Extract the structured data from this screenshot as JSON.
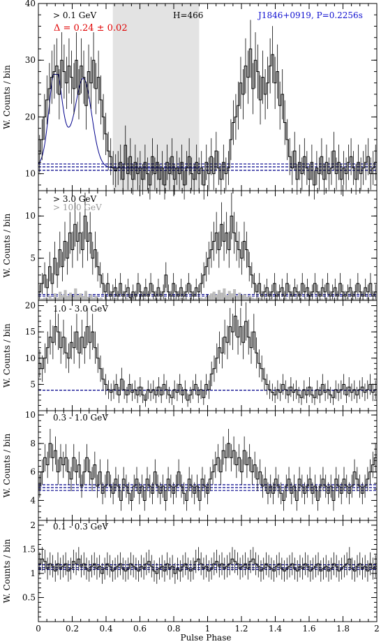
{
  "chart_data": {
    "type": "histogram",
    "xlabel": "Pulse Phase",
    "xlim": [
      0,
      2
    ],
    "x_ticks": [
      0,
      0.2,
      0.4,
      0.6,
      0.8,
      1,
      1.2,
      1.4,
      1.6,
      1.8,
      2
    ],
    "x_tick_labels": [
      "0",
      "0.2",
      "0.4",
      "0.6",
      "0.8",
      "1",
      "1.2",
      "1.4",
      "1.6",
      "1.8",
      "2"
    ],
    "panels": [
      {
        "id": "p1",
        "energy_label": "> 0.1 GeV",
        "delta_label": "Δ = 0.24 ± 0.02",
        "h_label": "H=466",
        "pulsar_label": "J1846+0919, P=0.2256s",
        "ylabel": "W. Counts / bin",
        "ylim": [
          7,
          40
        ],
        "y_ticks": [
          10,
          20,
          30,
          40
        ],
        "y_tick_labels": [
          "10",
          "20",
          "30",
          "40"
        ],
        "offpulse_region": [
          0.44,
          0.95
        ],
        "background_levels": [
          10.6,
          11.2,
          11.7
        ],
        "background_color": "#00008b",
        "model_color": "#00008b",
        "profile": [
          13.5,
          16,
          20,
          23,
          25,
          27,
          28,
          29,
          24,
          30,
          28,
          26,
          29,
          27,
          25,
          30,
          24,
          29,
          27,
          22,
          28,
          26,
          30,
          25,
          27,
          23,
          20,
          17,
          14,
          13,
          11,
          10.5,
          11,
          12,
          9,
          15,
          10,
          13,
          9,
          12,
          10,
          11,
          9,
          12,
          10,
          8,
          13,
          10,
          12,
          9,
          11,
          8,
          12,
          10,
          13,
          9,
          11,
          10,
          12,
          8,
          11,
          13,
          10,
          9,
          12,
          10,
          11,
          8,
          12,
          10,
          13,
          10,
          14,
          11,
          9,
          12,
          10,
          11,
          16,
          19,
          20,
          22,
          26,
          24,
          29,
          27,
          32,
          25,
          30,
          28,
          23,
          27,
          24,
          26,
          29,
          31,
          26,
          28,
          22,
          24,
          19,
          16,
          13,
          11,
          14,
          9,
          12,
          10,
          13,
          11,
          9,
          12,
          8,
          11,
          10,
          13,
          9,
          12,
          10,
          11,
          14,
          10,
          12,
          9,
          11,
          10,
          12,
          13,
          11,
          9,
          12,
          10,
          11,
          12,
          13,
          10,
          11,
          12
        ]
      },
      {
        "id": "p2",
        "energy_label": "> 3.0 GeV",
        "energy_label_2": "> 10.0 GeV",
        "ylabel": "W. Counts / bin",
        "ylim": [
          0,
          13
        ],
        "y_ticks": [
          5,
          10
        ],
        "y_tick_labels": [
          "5",
          "10"
        ],
        "background_levels": [
          0.5,
          0.7
        ],
        "background_color": "#00008b",
        "profile": [
          1,
          2,
          3,
          1.5,
          4,
          2,
          5,
          3,
          6,
          4,
          7,
          5,
          8,
          6,
          9,
          7,
          8,
          6,
          10,
          7,
          8,
          5,
          6,
          4,
          3,
          2,
          1,
          2,
          0.5,
          1,
          1.5,
          0.5,
          2,
          0.5,
          1,
          1.5,
          0.3,
          1,
          0.5,
          2,
          1,
          0.5,
          1.5,
          0.5,
          2,
          1,
          0.5,
          1.5,
          0.5,
          1,
          3,
          1,
          0.5,
          2,
          1,
          0.5,
          1.5,
          0.5,
          1,
          2,
          1,
          0.5,
          1.5,
          1,
          2,
          3,
          4,
          5,
          6,
          7,
          8,
          6,
          9,
          7,
          8,
          6,
          10,
          8,
          7,
          6,
          5,
          7,
          6,
          4,
          3,
          2,
          1,
          2,
          0.5,
          1,
          1.5,
          0.5,
          1,
          2,
          0.5,
          1,
          1.5,
          0.5,
          2,
          1,
          0.5,
          1.5,
          1,
          0.5,
          2,
          1,
          1.5,
          0.5,
          1,
          2,
          1,
          0.5,
          1.5,
          1,
          2,
          0.5,
          1,
          1.5,
          0.5,
          2,
          1,
          0.5,
          1,
          1.5,
          0.5,
          1,
          2,
          1,
          0.5,
          1.5,
          1,
          2,
          0.5,
          1
        ],
        "profile_2": [
          0.1,
          0.2,
          0.3,
          0.1,
          0.5,
          0.2,
          0.8,
          0.3,
          1,
          0.6,
          1.2,
          0.5,
          0.9,
          0.4,
          1.4,
          0.6,
          0.8,
          0.5,
          1.1,
          0.4,
          0.7,
          0.3,
          0.5,
          0.2,
          0.3,
          0.1,
          0.2,
          0.1,
          0.2,
          0.1,
          0.3,
          0.1,
          0.2,
          0.1,
          0.3,
          0.1,
          0.2,
          0.4,
          0.1,
          0.2,
          0.1,
          0.3,
          0.1,
          0.2,
          0.1,
          0.2,
          0.1,
          0.3,
          0.1,
          0.2,
          0.1,
          0.3,
          0.1,
          0.2,
          0.1,
          0.3,
          0.1,
          0.2,
          0.1,
          0.3,
          0.1,
          0.2,
          0.1,
          0.3,
          0.2,
          0.4,
          0.6,
          0.8,
          1,
          0.7,
          1.2,
          0.9,
          1.4,
          0.6,
          1.1,
          0.8,
          1.3,
          0.5,
          0.9,
          0.6,
          0.7,
          0.4,
          0.5,
          0.3,
          0.2,
          0.1,
          0.3,
          0.1,
          0.2,
          0.1,
          0.3,
          0.1,
          0.2,
          0.1,
          0.2,
          0.1,
          0.3,
          0.1,
          0.2,
          0.1,
          0.3,
          0.1,
          0.2,
          0.1,
          0.3,
          0.1,
          0.2,
          0.1,
          0.3,
          0.1,
          0.2,
          0.1,
          0.3,
          0.1,
          0.2,
          0.1,
          0.3,
          0.1,
          0.2,
          0.1,
          0.3,
          0.1,
          0.2,
          0.1,
          0.3,
          0.1,
          0.2,
          0.1,
          0.3,
          0.1,
          0.2,
          0.1
        ]
      },
      {
        "id": "p3",
        "energy_label": "1.0 - 3.0 GeV",
        "ylabel": "W. Counts / bin",
        "ylim": [
          0,
          21
        ],
        "y_ticks": [
          5,
          10,
          15,
          20
        ],
        "y_tick_labels": [
          "5",
          "10",
          "15",
          "20"
        ],
        "background_levels": [
          3.9
        ],
        "background_color": "#00008b",
        "profile": [
          9,
          8,
          10,
          12,
          14,
          13,
          16,
          15,
          12,
          14,
          11,
          10,
          13,
          12,
          15,
          11,
          14,
          12,
          16,
          13,
          15,
          12,
          10,
          8,
          6,
          5,
          4,
          3.5,
          4,
          5,
          3,
          6,
          4,
          3,
          5,
          3.5,
          4,
          3,
          4.5,
          3,
          2,
          4,
          3.5,
          4,
          3,
          4.5,
          3,
          5,
          4,
          3,
          2.5,
          4,
          3.5,
          5,
          3,
          4,
          2,
          3,
          4,
          5,
          3,
          4,
          2.5,
          5,
          4,
          7,
          8,
          10,
          12,
          11,
          14,
          13,
          16,
          15,
          18,
          14,
          16,
          13,
          17,
          14,
          12,
          15,
          11,
          9,
          8,
          6,
          5,
          4,
          3.5,
          3,
          4,
          3.5,
          5,
          4,
          3,
          4.5,
          3.5,
          4,
          3,
          2.5,
          4,
          3,
          4.5,
          3,
          2.5,
          4,
          3,
          5,
          3.5,
          4,
          3,
          2.5,
          4,
          3.5,
          4,
          5,
          3,
          4.5,
          3.5,
          4,
          3,
          4,
          4.5,
          3.5,
          4,
          5,
          3.5,
          4
        ]
      },
      {
        "id": "p4",
        "energy_label": "0.3 - 1.0 GeV",
        "ylabel": "W. Counts / bin",
        "ylim": [
          2.6,
          10.3
        ],
        "y_ticks": [
          4,
          6,
          8,
          10
        ],
        "y_tick_labels": [
          "4",
          "6",
          "8",
          "10"
        ],
        "background_levels": [
          4.7,
          4.9,
          5.1
        ],
        "background_color": "#00008b",
        "profile": [
          5,
          6,
          7,
          6.5,
          8,
          7,
          7.5,
          6,
          7,
          6.5,
          7,
          6,
          5.5,
          7,
          6,
          6.5,
          5,
          6,
          7,
          6,
          5.5,
          6.5,
          5,
          6,
          4.5,
          5,
          6,
          5,
          4.5,
          5.5,
          5,
          4,
          5.5,
          5,
          4.5,
          4,
          5,
          5.5,
          4.5,
          5,
          4,
          5.5,
          5,
          4.5,
          6,
          5,
          4.5,
          5,
          4,
          5.5,
          5,
          4.5,
          5,
          6,
          5,
          4.5,
          4,
          5.5,
          5,
          4.5,
          5,
          4,
          5.5,
          5,
          4.5,
          5.5,
          6,
          6.5,
          7,
          6,
          7.5,
          7,
          8,
          7,
          7.5,
          6.5,
          7,
          6,
          7.5,
          6.5,
          7,
          6,
          6.5,
          5.5,
          6,
          5,
          5.5,
          4.5,
          5,
          4.5,
          5.5,
          5,
          4.5,
          4,
          5,
          5.5,
          4.5,
          5,
          4,
          5.5,
          5,
          4.5,
          5,
          5.5,
          4.5,
          5,
          4,
          5,
          5.5,
          5,
          4.5,
          5,
          4,
          5.5,
          5,
          4.5,
          5.5,
          5,
          4.5,
          5,
          6,
          5.5,
          5,
          4.5,
          5,
          5.5,
          6,
          6.5,
          7
        ]
      },
      {
        "id": "p5",
        "energy_label": "0.1 - 0.3 GeV",
        "ylabel": "W. Counts / bin",
        "ylim": [
          0,
          2.1
        ],
        "y_ticks": [
          0.5,
          1,
          1.5,
          2
        ],
        "y_tick_labels": [
          "0.5",
          "1",
          "1.5",
          "2"
        ],
        "background_levels": [
          1.08,
          1.12,
          1.18
        ],
        "background_color": "#00008b",
        "profile": [
          1.2,
          1.3,
          1.25,
          1.1,
          1.2,
          1.15,
          1.05,
          1.2,
          1.1,
          1.15,
          1.2,
          1.05,
          1.1,
          1.25,
          1.2,
          1.3,
          1.15,
          1.2,
          1.1,
          1.05,
          1.15,
          1.2,
          1.1,
          1.15,
          1.0,
          1.1,
          1.2,
          1.15,
          1.05,
          1.1,
          1.15,
          1.2,
          1.1,
          1.05,
          1.1,
          1.2,
          1.15,
          1.1,
          1.05,
          1.15,
          1.1,
          1.2,
          1.25,
          1.15,
          1.05,
          1.0,
          1.1,
          1.15,
          1.05,
          1.2,
          1.1,
          1.15,
          1.0,
          1.1,
          1.05,
          1.15,
          1.2,
          1.1,
          1.05,
          1.1,
          1.25,
          1.3,
          1.2,
          1.1,
          1.15,
          1.05,
          1.1,
          1.2,
          1.25,
          1.15,
          1.2,
          1.1,
          1.15,
          1.2,
          1.3,
          1.25,
          1.2,
          1.1,
          1.15,
          1.2,
          1.1,
          1.25,
          1.3,
          1.2,
          1.15,
          1.05,
          1.1,
          1.2,
          1.15,
          1.1,
          1.05,
          1.15,
          1.2,
          1.1,
          1.05,
          1.1,
          1.15,
          1.2,
          1.1,
          1.05,
          1.15,
          1.1,
          1.2,
          1.15,
          1.05,
          1.1,
          1.15,
          1.2,
          1.05,
          1.1,
          1.15,
          1.05,
          1.1,
          1.2,
          1.15,
          1.05,
          1.1,
          1.15,
          1.2,
          1.3,
          1.1,
          1.05,
          1.15,
          1.2,
          1.1,
          1.15,
          1.05,
          1.2,
          1.1,
          1.15
        ]
      }
    ]
  }
}
